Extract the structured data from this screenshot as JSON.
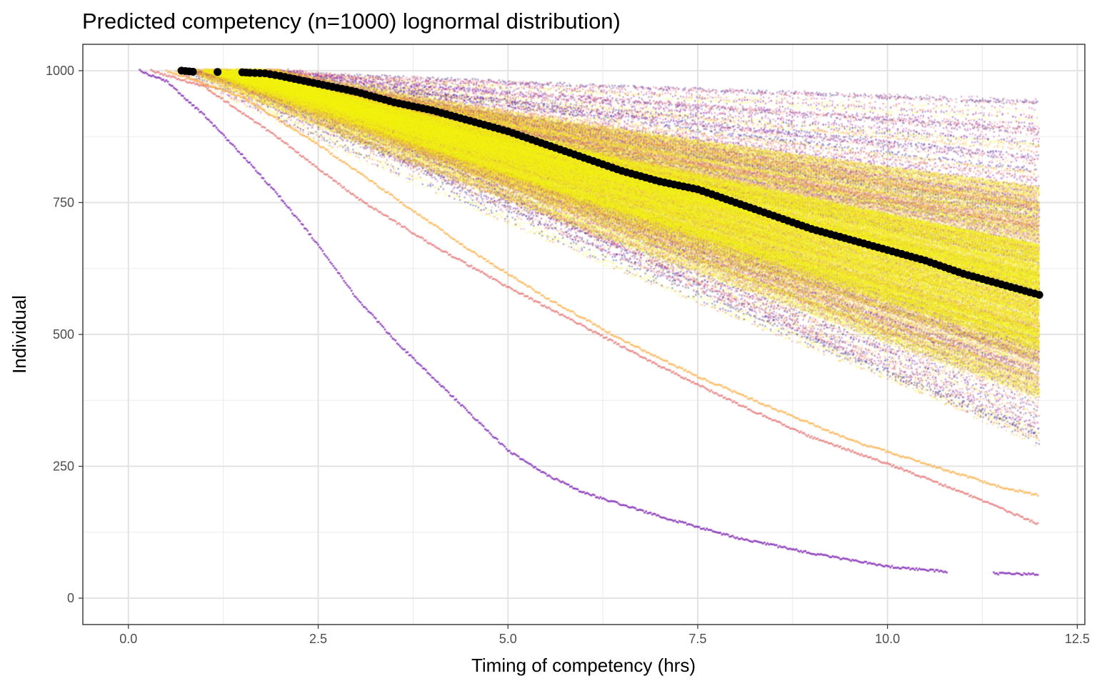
{
  "chart_data": {
    "type": "scatter",
    "title": "Predicted competency (n=1000) lognormal distribution)",
    "xlabel": "Timing of competency (hrs)",
    "ylabel": "Individual",
    "xlim": [
      -0.6,
      12.6
    ],
    "ylim": [
      -50,
      1050
    ],
    "x_ticks": [
      0.0,
      2.5,
      5.0,
      7.5,
      10.0,
      12.5
    ],
    "x_tick_labels": [
      "0.0",
      "2.5",
      "5.0",
      "7.5",
      "10.0",
      "12.5"
    ],
    "y_ticks": [
      0,
      250,
      500,
      750,
      1000
    ],
    "y_tick_labels": [
      "0",
      "250",
      "500",
      "750",
      "1000"
    ],
    "grid": true,
    "theme": "bw",
    "legend": "none",
    "series": [
      {
        "role": "mean-trajectory",
        "color": "#000000",
        "x": [
          0.7,
          0.85,
          1.5,
          1.6,
          1.8,
          2.0,
          2.5,
          3.0,
          3.5,
          4.0,
          4.5,
          5.0,
          5.5,
          6.0,
          6.5,
          7.0,
          7.5,
          8.0,
          8.5,
          9.0,
          9.5,
          10.0,
          10.5,
          11.0,
          11.5,
          12.0
        ],
        "y": [
          1000,
          998,
          997,
          996,
          995,
          990,
          975,
          960,
          940,
          925,
          905,
          885,
          860,
          835,
          810,
          790,
          775,
          750,
          725,
          700,
          680,
          660,
          640,
          615,
          595,
          575
        ]
      },
      {
        "role": "individual-trajectories",
        "palette": [
          "#0d0887",
          "#6a00a8",
          "#b12a90",
          "#e16462",
          "#fca636",
          "#f0f921"
        ],
        "end_y_range_at_12h": [
          285,
          945
        ],
        "dense_band_end_y_range_at_12h": [
          380,
          780
        ]
      },
      {
        "role": "outlier-trajectory",
        "color": "#6a00a8",
        "x": [
          0.15,
          0.5,
          1.0,
          1.5,
          2.0,
          2.5,
          3.0,
          3.5,
          4.0,
          4.5,
          5.0,
          5.5,
          6.0,
          7.0,
          8.0,
          9.0,
          10.0,
          10.8
        ],
        "y": [
          1000,
          980,
          915,
          840,
          760,
          670,
          570,
          490,
          420,
          350,
          280,
          235,
          200,
          155,
          115,
          85,
          60,
          50
        ]
      },
      {
        "role": "outlier-trajectory",
        "color": "#6a00a8",
        "x": [
          11.4,
          12.0
        ],
        "y": [
          47,
          45
        ]
      },
      {
        "role": "outlier-trajectory",
        "color": "#e16462",
        "x": [
          0.3,
          1.0,
          2.0,
          3.0,
          4.0,
          5.0,
          6.0,
          7.0,
          8.0,
          9.0,
          10.0,
          11.0,
          12.0
        ],
        "y": [
          1000,
          970,
          870,
          760,
          670,
          590,
          515,
          440,
          370,
          305,
          255,
          200,
          140
        ]
      },
      {
        "role": "outlier-trajectory",
        "color": "#fca636",
        "x": [
          0.5,
          1.5,
          2.5,
          3.5,
          4.5,
          5.5,
          6.5,
          7.5,
          8.5,
          9.5,
          10.5,
          11.5,
          12.0
        ],
        "y": [
          1000,
          950,
          860,
          760,
          660,
          570,
          490,
          420,
          360,
          300,
          255,
          210,
          195
        ]
      }
    ]
  }
}
